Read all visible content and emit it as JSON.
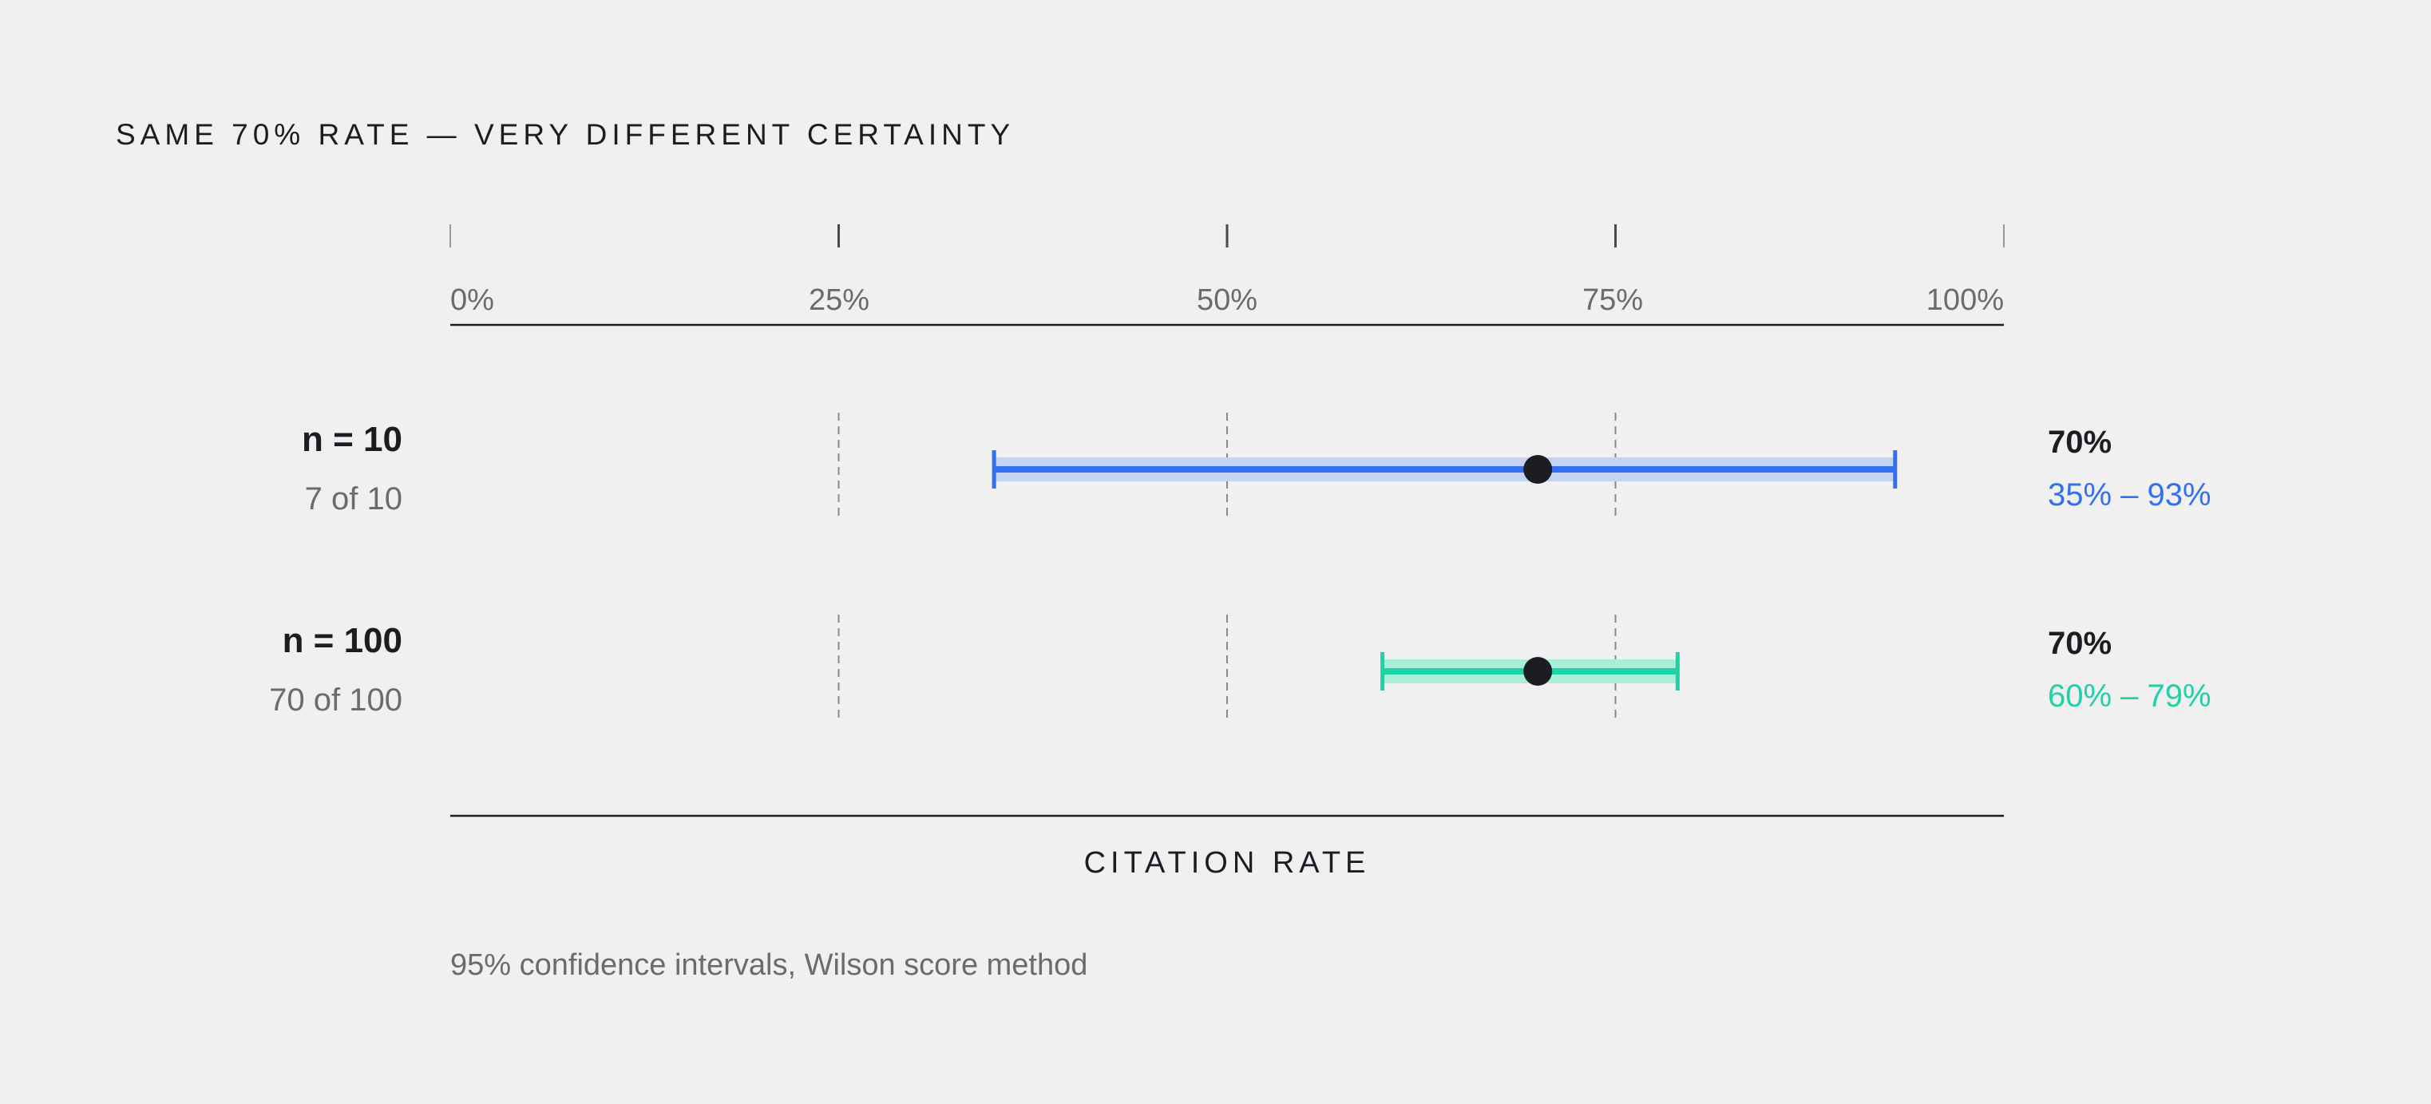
{
  "title": "SAME 70% RATE — VERY DIFFERENT CERTAINTY",
  "chart_data": {
    "type": "interval",
    "xlabel": "CITATION RATE",
    "xlim": [
      0,
      100
    ],
    "ticks": [
      "0%",
      "25%",
      "50%",
      "75%",
      "100%"
    ],
    "tick_values": [
      0,
      25,
      50,
      75,
      100
    ],
    "rows": [
      {
        "label": "n = 10",
        "sub": "7 of 10",
        "rate": 70,
        "low": 35,
        "high": 93,
        "rate_text": "70%",
        "ci_text": "35% – 93%",
        "color": "#3370f0",
        "band_color": "#c4d3f1"
      },
      {
        "label": "n = 100",
        "sub": "70 of 100",
        "rate": 70,
        "low": 60,
        "high": 79,
        "rate_text": "70%",
        "ci_text": "60% – 79%",
        "color": "#1cd2a6",
        "band_color": "#a8eed9"
      }
    ],
    "grid_values": [
      25,
      50,
      75
    ],
    "point_color": "#1c1d22"
  },
  "footnote": "95% confidence intervals, Wilson score method"
}
